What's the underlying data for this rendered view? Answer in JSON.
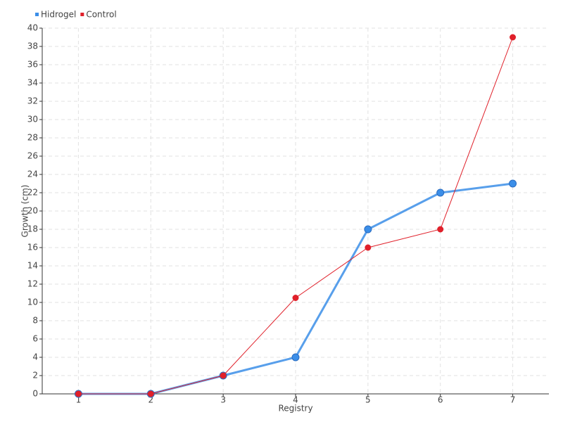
{
  "chart_data": {
    "type": "line",
    "x_label": "Registry",
    "y_label": "Growth (cm)",
    "categories": [
      "1",
      "2",
      "3",
      "4",
      "5",
      "6",
      "7"
    ],
    "series": [
      {
        "name": "Hidrogel",
        "color": "#3b8ee8",
        "values": [
          0,
          0,
          2,
          4,
          18,
          22,
          23
        ]
      },
      {
        "name": "Control",
        "color": "#e0202a",
        "values": [
          0,
          0,
          2,
          10.5,
          16,
          18,
          39
        ]
      }
    ],
    "ylim": [
      0,
      40
    ],
    "yticks": [
      0,
      2,
      4,
      6,
      8,
      10,
      12,
      14,
      16,
      18,
      20,
      22,
      24,
      26,
      28,
      30,
      32,
      34,
      36,
      38,
      40
    ],
    "grid": true,
    "legend": "top-left"
  }
}
